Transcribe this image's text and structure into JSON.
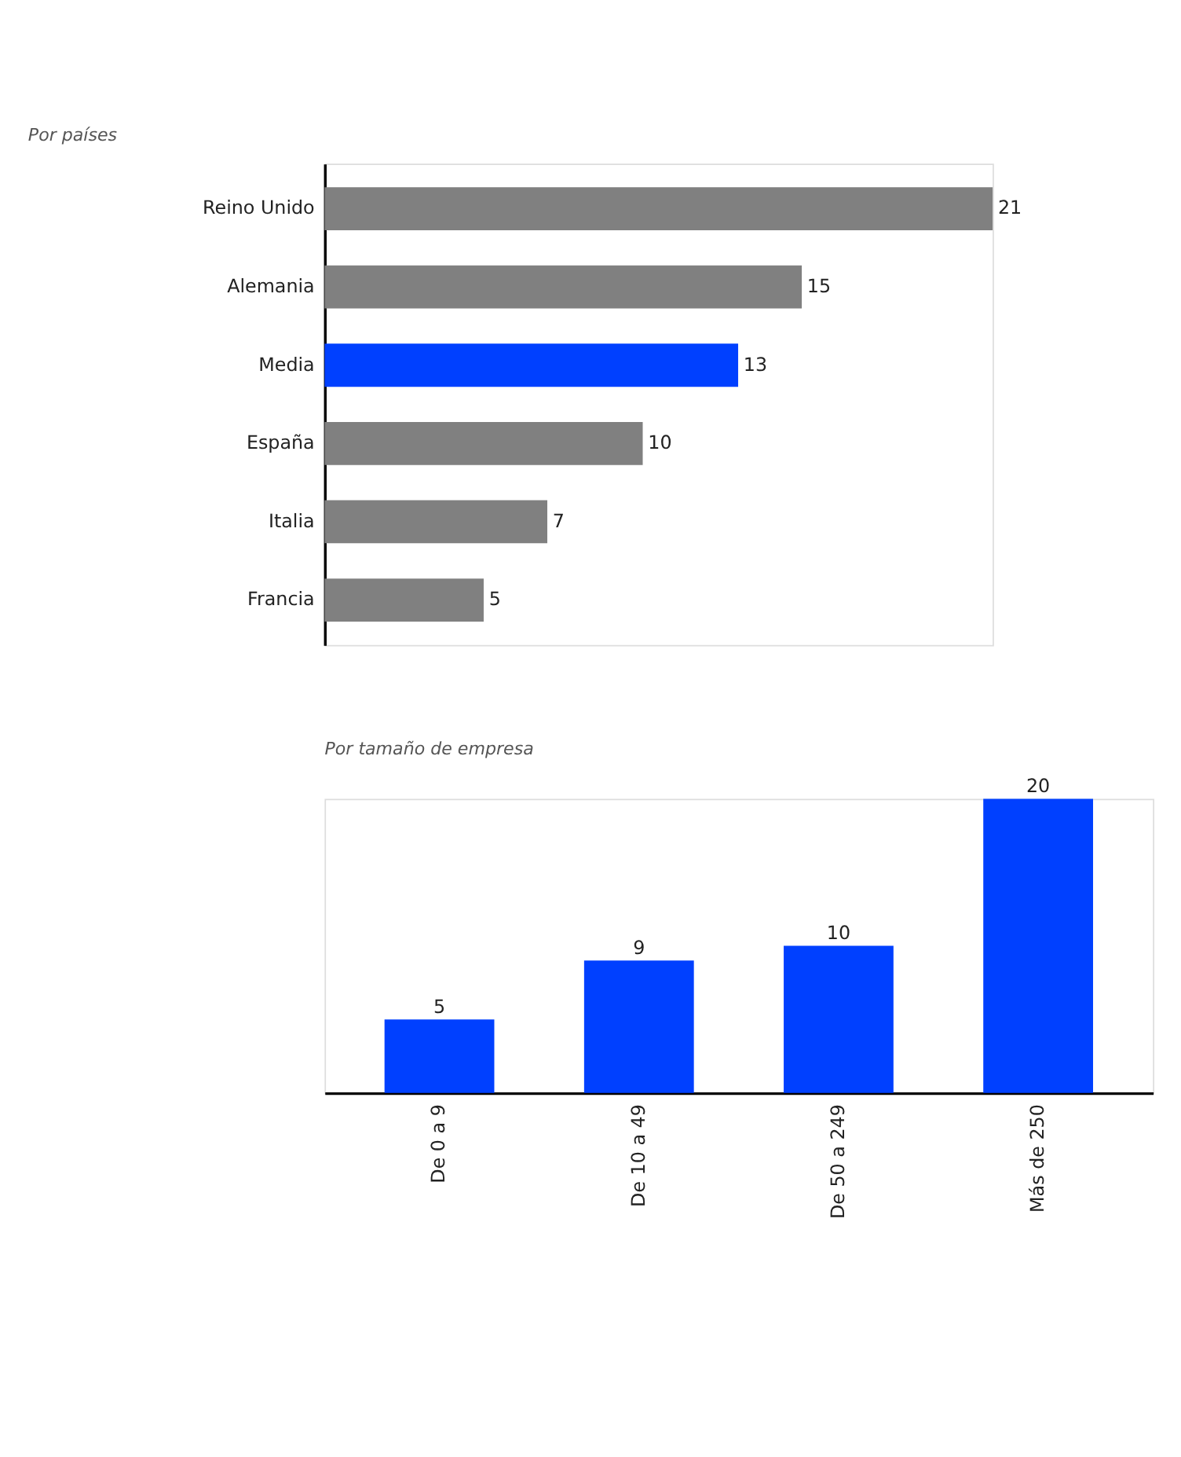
{
  "chart_data": [
    {
      "type": "bar",
      "orientation": "horizontal",
      "title": "Por países",
      "categories": [
        "Reino Unido",
        "Alemania",
        "Media",
        "España",
        "Italia",
        "Francia"
      ],
      "values": [
        21,
        15,
        13,
        10,
        7,
        5
      ],
      "colors": [
        "#808080",
        "#808080",
        "#0040ff",
        "#808080",
        "#808080",
        "#808080"
      ],
      "data_labels": true
    },
    {
      "type": "bar",
      "title": "Por tamaño de empresa",
      "categories": [
        "De 0 a 9",
        "De 10 a 49",
        "De 50 a 249",
        "Más de 250"
      ],
      "values": [
        5,
        9,
        10,
        20
      ],
      "color": "#0040ff",
      "data_labels": true
    }
  ]
}
